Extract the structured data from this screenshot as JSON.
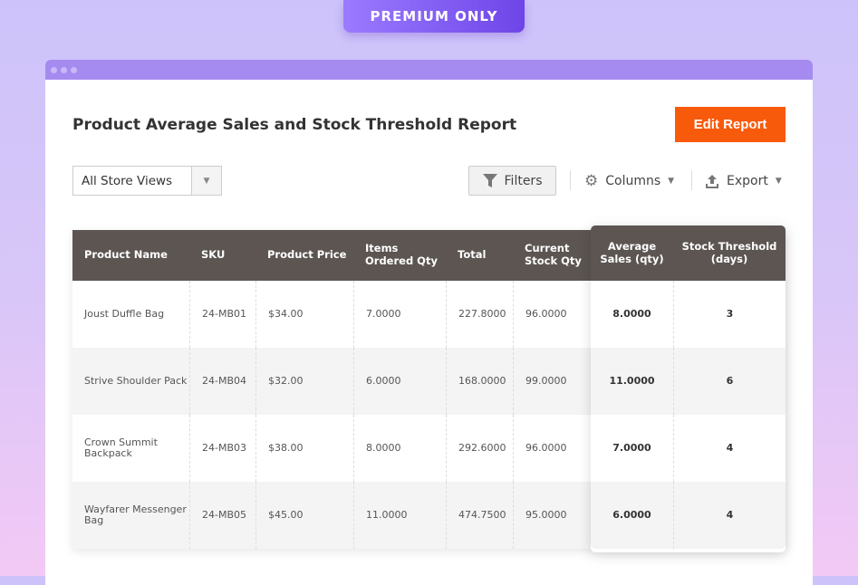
{
  "badge": "PREMIUM ONLY",
  "title": "Product Average Sales and Stock Threshold Report",
  "edit_button": "Edit Report",
  "store_select": "All Store Views",
  "toolbar": {
    "filters": "Filters",
    "columns": "Columns",
    "export": "Export"
  },
  "colors": {
    "accent": "#f85a0c",
    "header": "#5c5552",
    "badge": "#7a54f0",
    "window_bar": "#a58bf0"
  },
  "table": {
    "headers": [
      "Product Name",
      "SKU",
      "Product Price",
      "Items Ordered Qty",
      "Total",
      "Current Stock Qty",
      "Average Sales (qty)",
      "Stock Threshold (days)"
    ],
    "rows": [
      [
        "Joust Duffle Bag",
        "24-MB01",
        "$34.00",
        "7.0000",
        "227.8000",
        "96.0000",
        "8.0000",
        "3"
      ],
      [
        "Strive Shoulder Pack",
        "24-MB04",
        "$32.00",
        "6.0000",
        "168.0000",
        "99.0000",
        "11.0000",
        "6"
      ],
      [
        "Crown Summit Backpack",
        "24-MB03",
        "$38.00",
        "8.0000",
        "292.6000",
        "96.0000",
        "7.0000",
        "4"
      ],
      [
        "Wayfarer Messenger Bag",
        "24-MB05",
        "$45.00",
        "11.0000",
        "474.7500",
        "95.0000",
        "6.0000",
        "4"
      ]
    ]
  }
}
